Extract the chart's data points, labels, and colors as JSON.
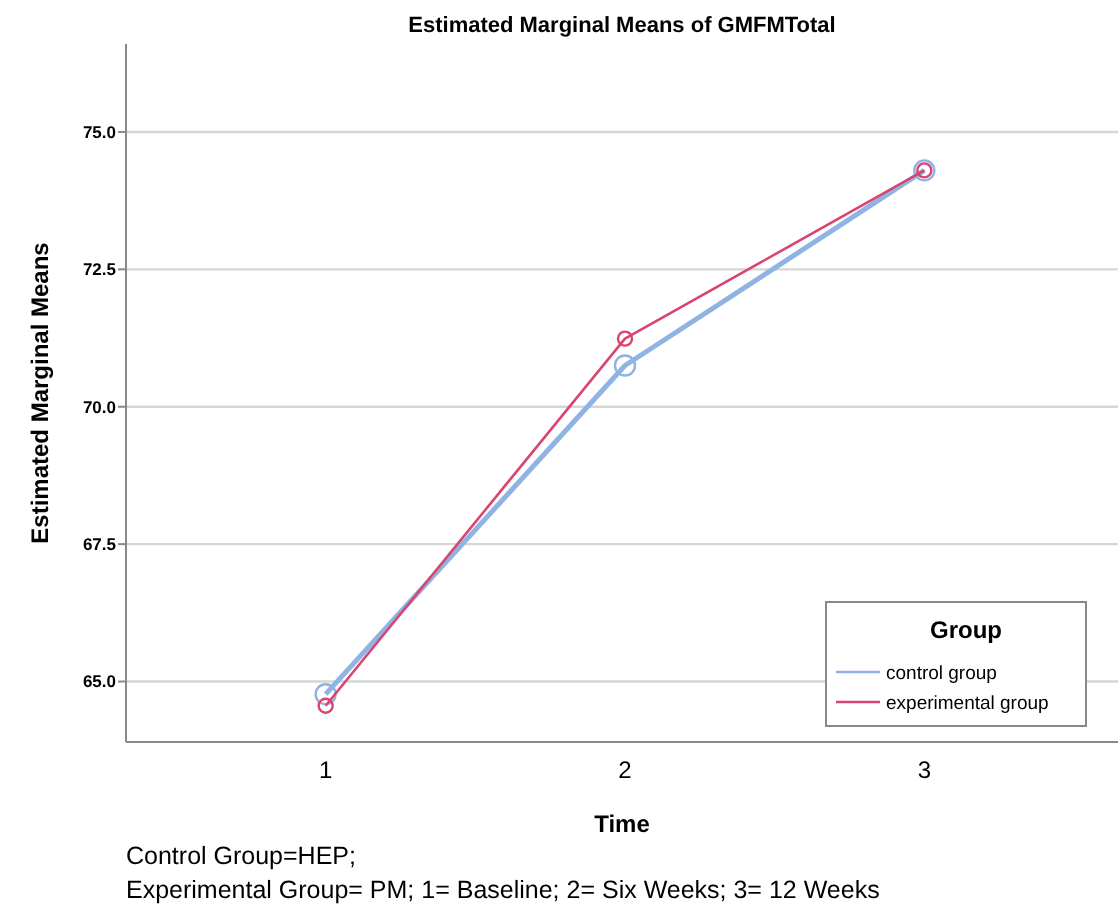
{
  "chart_data": {
    "type": "line",
    "title": "Estimated Marginal Means of GMFMTotal",
    "xlabel": "Time",
    "ylabel": "Estimated Marginal Means",
    "legend_title": "Group",
    "categories": [
      "1",
      "2",
      "3"
    ],
    "series": [
      {
        "name": "control group",
        "color": "#8fb4e3",
        "values": [
          64.77,
          70.75,
          74.3
        ]
      },
      {
        "name": "experimental group",
        "color": "#d9456e",
        "values": [
          64.56,
          71.24,
          74.3
        ]
      }
    ],
    "ylim": [
      63.9,
      76.6
    ],
    "yticks": [
      {
        "value": 65,
        "label": "65.0"
      },
      {
        "value": 67.5,
        "label": "67.5"
      },
      {
        "value": 70,
        "label": "70.0"
      },
      {
        "value": 72.5,
        "label": "72.5"
      },
      {
        "value": 75,
        "label": "75.0"
      }
    ],
    "grid": "y",
    "legend": "bottom right",
    "marker": "circle",
    "line_style": "solid",
    "annotations": [
      "Control Group=HEP;",
      "Experimental Group= PM; 1= Baseline; 2= Six Weeks; 3= 12 Weeks"
    ]
  }
}
